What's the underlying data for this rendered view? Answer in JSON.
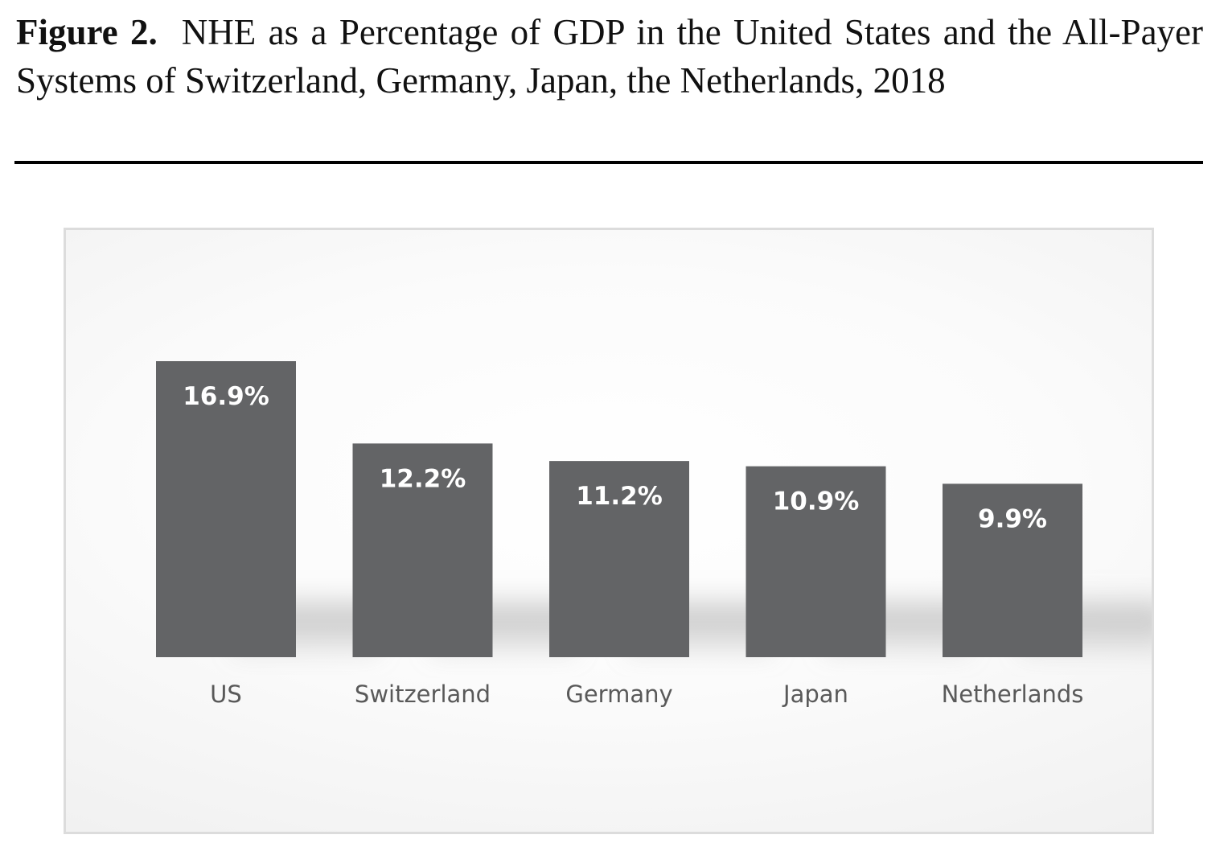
{
  "figure": {
    "label": "Figure 2.",
    "caption": "NHE as a Percentage of GDP in the United States and the All-Payer Systems of Switzerland, Germany, Japan, the Netherlands, 2018"
  },
  "chart_data": {
    "type": "bar",
    "title": "",
    "xlabel": "",
    "ylabel": "",
    "categories": [
      "US",
      "Switzerland",
      "Germany",
      "Japan",
      "Netherlands"
    ],
    "values": [
      16.9,
      12.2,
      11.2,
      10.9,
      9.9
    ],
    "value_labels": [
      "16.9%",
      "12.2%",
      "11.2%",
      "10.9%",
      "9.9%"
    ],
    "unit": "%",
    "ylim": [
      0,
      16.9
    ],
    "grid": false,
    "legend": "none",
    "bar_color": "#636466"
  }
}
